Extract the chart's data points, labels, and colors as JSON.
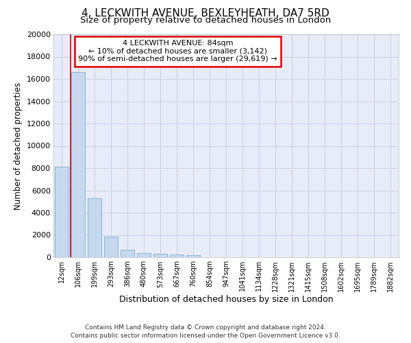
{
  "title": "4, LECKWITH AVENUE, BEXLEYHEATH, DA7 5RD",
  "subtitle": "Size of property relative to detached houses in London",
  "xlabel": "Distribution of detached houses by size in London",
  "ylabel": "Number of detached properties",
  "categories": [
    "12sqm",
    "106sqm",
    "199sqm",
    "293sqm",
    "386sqm",
    "480sqm",
    "573sqm",
    "667sqm",
    "760sqm",
    "854sqm",
    "947sqm",
    "1041sqm",
    "1134sqm",
    "1228sqm",
    "1321sqm",
    "1415sqm",
    "1508sqm",
    "1602sqm",
    "1695sqm",
    "1789sqm",
    "1882sqm"
  ],
  "values": [
    8100,
    16600,
    5300,
    1850,
    700,
    380,
    290,
    220,
    180,
    0,
    0,
    0,
    0,
    0,
    0,
    0,
    0,
    0,
    0,
    0,
    0
  ],
  "bar_color": "#c5d8ed",
  "bar_edge_color": "#7aadd4",
  "annotation_line1": "4 LECKWITH AVENUE: 84sqm",
  "annotation_line2": "← 10% of detached houses are smaller (3,142)",
  "annotation_line3": "90% of semi-detached houses are larger (29,619) →",
  "annotation_box_facecolor": "#ffffff",
  "annotation_box_edgecolor": "#dd0000",
  "ylim": [
    0,
    20000
  ],
  "yticks": [
    0,
    2000,
    4000,
    6000,
    8000,
    10000,
    12000,
    14000,
    16000,
    18000,
    20000
  ],
  "grid_color": "#c8d0e8",
  "bg_color": "#e8ecf8",
  "footer_line1": "Contains HM Land Registry data © Crown copyright and database right 2024.",
  "footer_line2": "Contains public sector information licensed under the Open Government Licence v3.0."
}
